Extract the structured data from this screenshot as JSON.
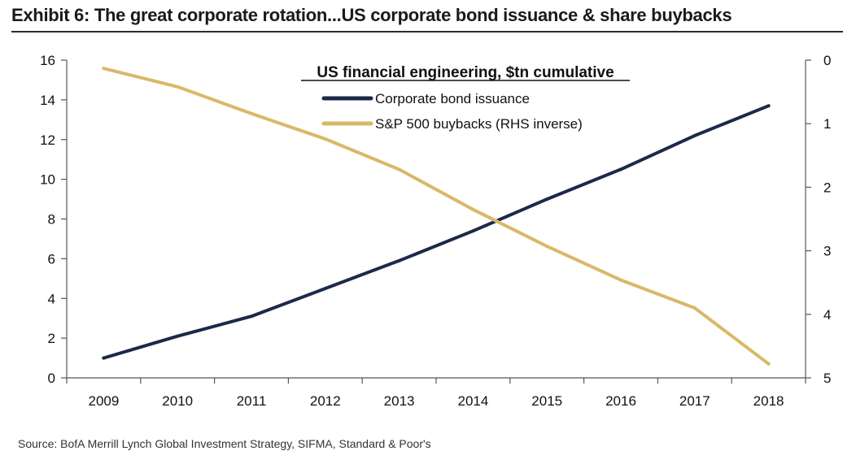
{
  "header": {
    "title": "Exhibit 6: The great corporate rotation...US corporate bond issuance & share buybacks"
  },
  "footer": {
    "source": "Source:  BofA Merrill Lynch Global Investment Strategy, SIFMA, Standard & Poor's"
  },
  "chart_data": {
    "type": "line",
    "title": "US financial engineering, $tn cumulative",
    "x": [
      "2009",
      "2010",
      "2011",
      "2012",
      "2013",
      "2014",
      "2015",
      "2016",
      "2017",
      "2018"
    ],
    "y_left": {
      "ylim": [
        0,
        16
      ],
      "ticks": [
        "0",
        "2",
        "4",
        "6",
        "8",
        "10",
        "12",
        "14",
        "16"
      ]
    },
    "y_right": {
      "ylim": [
        0,
        5
      ],
      "inverse": true,
      "ticks": [
        "0",
        "1",
        "2",
        "3",
        "4",
        "5"
      ]
    },
    "grid": false,
    "legend_position": "top-center",
    "series": [
      {
        "name": "Corporate bond issuance",
        "axis": "left",
        "color": "#1b2a4a",
        "values": [
          1.0,
          2.1,
          3.1,
          4.5,
          5.9,
          7.4,
          9.0,
          10.5,
          12.2,
          13.7
        ]
      },
      {
        "name": "S&P 500 buybacks (RHS inverse)",
        "axis": "right",
        "color": "#d9b868",
        "values": [
          0.13,
          0.42,
          0.84,
          1.24,
          1.72,
          2.35,
          2.93,
          3.46,
          3.9,
          4.78
        ]
      }
    ]
  }
}
